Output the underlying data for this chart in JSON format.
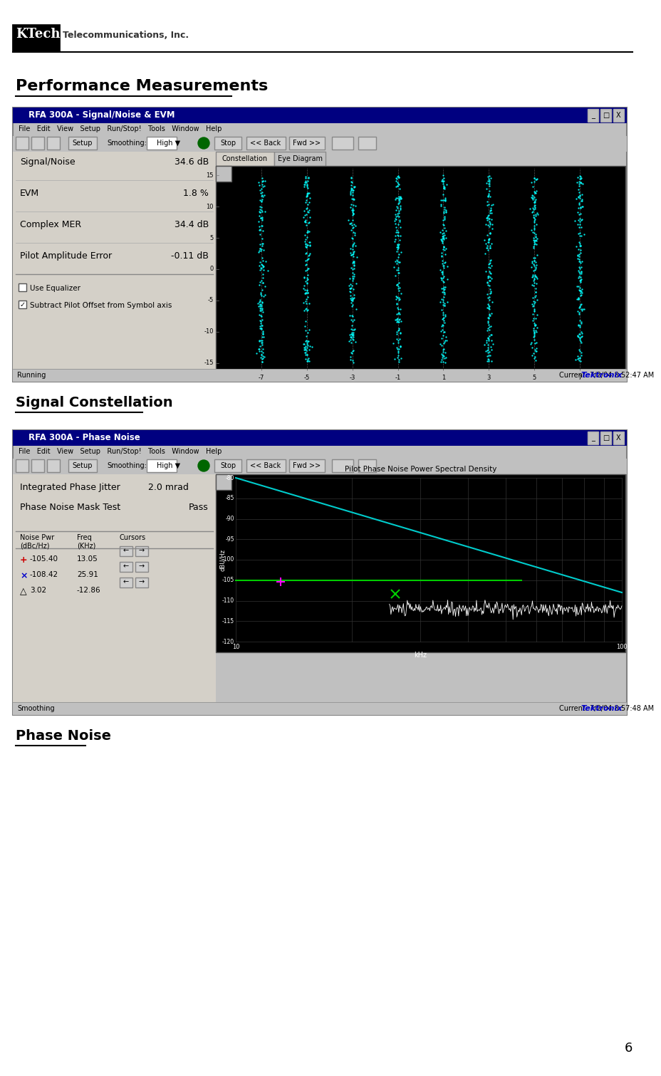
{
  "title": "Performance Measurements",
  "section1_label": "Signal Constellation",
  "section2_label": "Phase Noise",
  "page_number": "6",
  "bg_color": "#ffffff",
  "logo_text_ktech": "KTech",
  "logo_text_rest": "Telecommunications, Inc.",
  "win1_title": "RFA 300A - Signal/Noise & EVM",
  "win1_menu": "File   Edit   View   Setup   Run/Stop!   Tools   Window   Help",
  "win1_metrics": [
    [
      "Signal/Noise",
      "34.6 dB"
    ],
    [
      "EVM",
      "1.8 %"
    ],
    [
      "Complex MER",
      "34.4 dB"
    ],
    [
      "Pilot Amplitude Error",
      "-0.11 dB"
    ]
  ],
  "win1_checkboxes": [
    "Use Equalizer",
    "Subtract Pilot Offset from Symbol axis"
  ],
  "win1_footer_left": "Running",
  "win1_footer_right": "Current: 7/2/04 8:52:47 AM",
  "win1_footer_brand": "Tektronix",
  "win2_title": "RFA 300A - Phase Noise",
  "win2_menu": "File   Edit   View   Setup   Run/Stop!   Tools   Window   Help",
  "win2_plot_title": "Pilot Phase Noise Power Spectral Density",
  "win2_ylabel": "dBU/Hz",
  "win2_xlabel": "kHz",
  "win2_footer_left": "Smoothing",
  "win2_footer_right": "Current: 7/2/04 8:57:48 AM",
  "win2_footer_brand": "Tektronix",
  "title_fontsize": 16,
  "section_fontsize": 14,
  "title_color": "#000000",
  "win_titlebar_color": "#000080",
  "win_bg_color": "#c0c0c0",
  "constellation_color": "#00ffff",
  "phase_noise_curve_color": "#00cccc",
  "phase_noise_mask_color": "#00cc00",
  "tektronix_color": "#0000cc"
}
